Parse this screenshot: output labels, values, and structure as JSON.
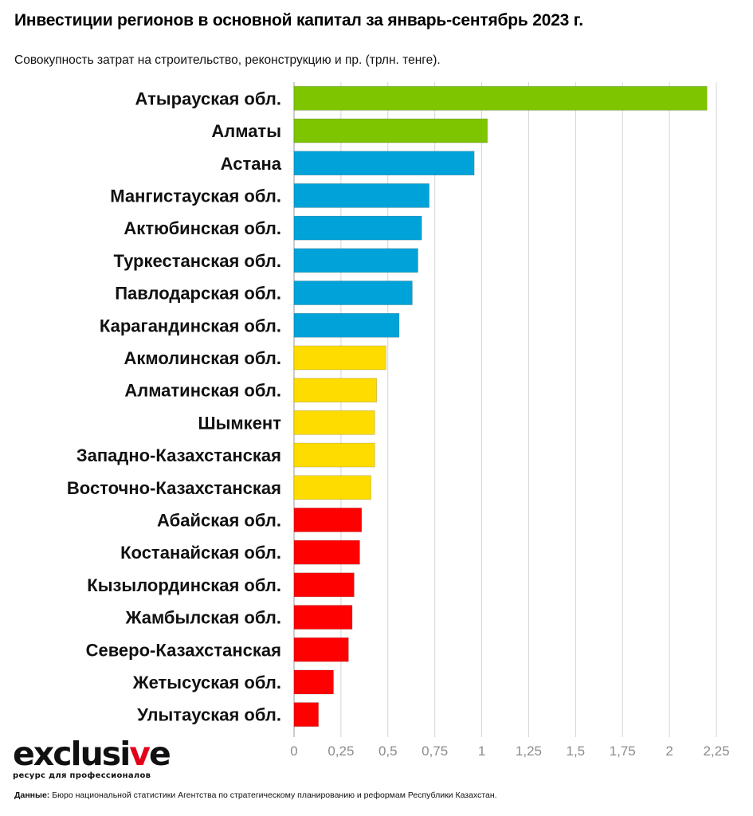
{
  "header": {
    "title": "Инвестиции регионов в основной капитал за январь-сентябрь 2023 г.",
    "subtitle": "Совокупность затрат на строительство, реконструкцию и пр. (трлн. тенге)."
  },
  "chart_data": {
    "type": "bar",
    "orientation": "horizontal",
    "title": "Инвестиции регионов в основной капитал за январь-сентябрь 2023 г.",
    "subtitle": "Совокупность затрат на строительство, реконструкцию и пр. (трлн. тенге).",
    "xlim": [
      0,
      2.25
    ],
    "x_ticks": [
      "0",
      "0,25",
      "0,5",
      "0,75",
      "1",
      "1,25",
      "1,5",
      "1,75",
      "2",
      "2,25"
    ],
    "grid": true,
    "categories": [
      "Атырауская обл.",
      "Алматы",
      "Астана",
      "Мангистауская обл.",
      "Актюбинская обл.",
      "Туркестанская обл.",
      "Павлодарская обл.",
      "Карагандинская обл.",
      "Акмолинская обл.",
      "Алматинская обл.",
      "Шымкент",
      "Западно-Казахстанская",
      "Восточно-Казахстанская",
      "Абайская обл.",
      "Костанайская обл.",
      "Кызылординская обл.",
      "Жамбылская обл.",
      "Северо-Казахстанская",
      "Жетысуская обл.",
      "Улытауская обл."
    ],
    "values": [
      2.2,
      1.03,
      0.96,
      0.72,
      0.68,
      0.66,
      0.63,
      0.56,
      0.49,
      0.44,
      0.43,
      0.43,
      0.41,
      0.36,
      0.35,
      0.32,
      0.31,
      0.29,
      0.21,
      0.13
    ],
    "colors": [
      "#7ec500",
      "#7ec500",
      "#00a3d9",
      "#00a3d9",
      "#00a3d9",
      "#00a3d9",
      "#00a3d9",
      "#00a3d9",
      "#ffdc00",
      "#ffdc00",
      "#ffdc00",
      "#ffdc00",
      "#ffdc00",
      "#ff0000",
      "#ff0000",
      "#ff0000",
      "#ff0000",
      "#ff0000",
      "#ff0000",
      "#ff0000"
    ]
  },
  "logo": {
    "word_main": "exclusi",
    "word_accent": "v",
    "word_end": "e",
    "tagline": "ресурс для профессионалов"
  },
  "footer": {
    "source_label": "Данные:",
    "source_text": " Бюро национальной статистики Агентства по стратегическому планированию и реформам Республики Казахстан."
  }
}
